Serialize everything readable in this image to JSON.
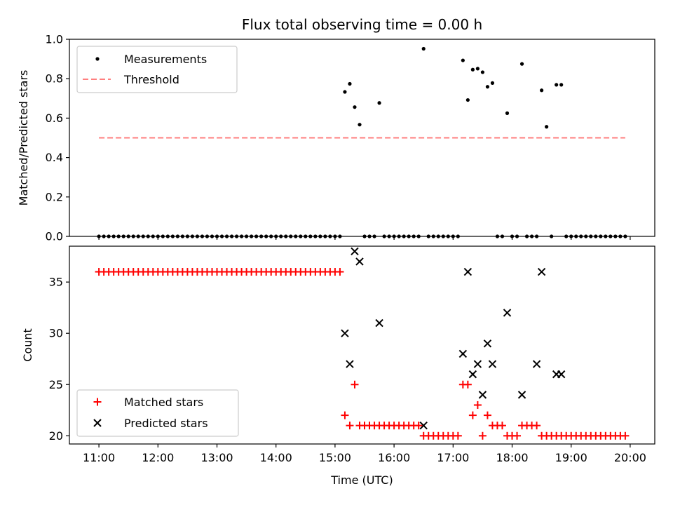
{
  "chart_data": [
    {
      "type": "scatter",
      "title": "Flux total observing time = 0.00 h",
      "xlabel": "",
      "ylabel": "Matched/Predicted stars",
      "ylim": [
        0,
        1.0
      ],
      "yticks": [
        "0.0",
        "0.2",
        "0.4",
        "0.6",
        "0.8",
        "1.0"
      ],
      "xlim": [
        "10:30",
        "20:25"
      ],
      "legend": {
        "placement": "top-left",
        "entries": [
          "Measurements",
          "Threshold"
        ]
      },
      "colors": {
        "measurements": "#000000",
        "threshold": "#ff7f7f"
      },
      "threshold": {
        "name": "Threshold",
        "value": 0.5,
        "x_start": "11:00",
        "x_end": "19:55"
      },
      "series": [
        {
          "name": "Measurements",
          "x": [
            "11:00",
            "11:05",
            "11:10",
            "11:15",
            "11:20",
            "11:25",
            "11:30",
            "11:35",
            "11:40",
            "11:45",
            "11:50",
            "11:55",
            "12:00",
            "12:05",
            "12:10",
            "12:15",
            "12:20",
            "12:25",
            "12:30",
            "12:35",
            "12:40",
            "12:45",
            "12:50",
            "12:55",
            "13:00",
            "13:05",
            "13:10",
            "13:15",
            "13:20",
            "13:25",
            "13:30",
            "13:35",
            "13:40",
            "13:45",
            "13:50",
            "13:55",
            "14:00",
            "14:05",
            "14:10",
            "14:15",
            "14:20",
            "14:25",
            "14:30",
            "14:35",
            "14:40",
            "14:45",
            "14:50",
            "14:55",
            "15:00",
            "15:05",
            "15:10",
            "15:15",
            "15:20",
            "15:25",
            "15:30",
            "15:35",
            "15:40",
            "15:45",
            "15:50",
            "15:55",
            "16:00",
            "16:05",
            "16:10",
            "16:15",
            "16:20",
            "16:25",
            "16:30",
            "16:35",
            "16:40",
            "16:45",
            "16:50",
            "16:55",
            "17:00",
            "17:05",
            "17:10",
            "17:15",
            "17:20",
            "17:25",
            "17:30",
            "17:35",
            "17:40",
            "17:45",
            "17:50",
            "17:55",
            "18:00",
            "18:05",
            "18:10",
            "18:15",
            "18:20",
            "18:25",
            "18:30",
            "18:35",
            "18:40",
            "18:45",
            "18:50",
            "18:55",
            "19:00",
            "19:05",
            "19:10",
            "19:15",
            "19:20",
            "19:25",
            "19:30",
            "19:35",
            "19:40",
            "19:45",
            "19:50",
            "19:55"
          ],
          "values": [
            0,
            0,
            0,
            0,
            0,
            0,
            0,
            0,
            0,
            0,
            0,
            0,
            0,
            0,
            0,
            0,
            0,
            0,
            0,
            0,
            0,
            0,
            0,
            0,
            0,
            0,
            0,
            0,
            0,
            0,
            0,
            0,
            0,
            0,
            0,
            0,
            0,
            0,
            0,
            0,
            0,
            0,
            0,
            0,
            0,
            0,
            0,
            0,
            0,
            0,
            0.733,
            0.774,
            0.656,
            0.567,
            0,
            0,
            0,
            0.677,
            0,
            0,
            0,
            0,
            0,
            0,
            0,
            0,
            0.952,
            0,
            0,
            0,
            0,
            0,
            0,
            0,
            0.893,
            0.692,
            0.846,
            0.851,
            0.833,
            0.759,
            0.778,
            0,
            0,
            0.625,
            0,
            0,
            0.875,
            0,
            0,
            0,
            0.741,
            0.556,
            0,
            0.769,
            0.769,
            0,
            0,
            0,
            0,
            0,
            0,
            0,
            0,
            0,
            0,
            0,
            0,
            0
          ]
        }
      ]
    },
    {
      "type": "scatter",
      "title": "",
      "xlabel": "Time (UTC)",
      "ylabel": "Count",
      "ylim": [
        19.2,
        38.5
      ],
      "yticks": [
        "20",
        "25",
        "30",
        "35"
      ],
      "xlim": [
        "10:30",
        "20:25"
      ],
      "xticks": [
        "11:00",
        "12:00",
        "13:00",
        "14:00",
        "15:00",
        "16:00",
        "17:00",
        "18:00",
        "19:00",
        "20:00"
      ],
      "legend": {
        "placement": "bottom-left",
        "entries": [
          "Matched stars",
          "Predicted stars"
        ]
      },
      "colors": {
        "matched": "#ff0000",
        "predicted": "#000000"
      },
      "series": [
        {
          "name": "Matched stars",
          "x": [
            "11:00",
            "11:05",
            "11:10",
            "11:15",
            "11:20",
            "11:25",
            "11:30",
            "11:35",
            "11:40",
            "11:45",
            "11:50",
            "11:55",
            "12:00",
            "12:05",
            "12:10",
            "12:15",
            "12:20",
            "12:25",
            "12:30",
            "12:35",
            "12:40",
            "12:45",
            "12:50",
            "12:55",
            "13:00",
            "13:05",
            "13:10",
            "13:15",
            "13:20",
            "13:25",
            "13:30",
            "13:35",
            "13:40",
            "13:45",
            "13:50",
            "13:55",
            "14:00",
            "14:05",
            "14:10",
            "14:15",
            "14:20",
            "14:25",
            "14:30",
            "14:35",
            "14:40",
            "14:45",
            "14:50",
            "14:55",
            "15:00",
            "15:05",
            "15:10",
            "15:15",
            "15:20",
            "15:25",
            "15:30",
            "15:35",
            "15:40",
            "15:45",
            "15:50",
            "15:55",
            "16:00",
            "16:05",
            "16:10",
            "16:15",
            "16:20",
            "16:25",
            "16:30",
            "16:35",
            "16:40",
            "16:45",
            "16:50",
            "16:55",
            "17:00",
            "17:05",
            "17:10",
            "17:15",
            "17:20",
            "17:25",
            "17:30",
            "17:35",
            "17:40",
            "17:45",
            "17:50",
            "17:55",
            "18:00",
            "18:05",
            "18:10",
            "18:15",
            "18:20",
            "18:25",
            "18:30",
            "18:35",
            "18:40",
            "18:45",
            "18:50",
            "18:55",
            "19:00",
            "19:05",
            "19:10",
            "19:15",
            "19:20",
            "19:25",
            "19:30",
            "19:35",
            "19:40",
            "19:45",
            "19:50",
            "19:55"
          ],
          "values": [
            36,
            36,
            36,
            36,
            36,
            36,
            36,
            36,
            36,
            36,
            36,
            36,
            36,
            36,
            36,
            36,
            36,
            36,
            36,
            36,
            36,
            36,
            36,
            36,
            36,
            36,
            36,
            36,
            36,
            36,
            36,
            36,
            36,
            36,
            36,
            36,
            36,
            36,
            36,
            36,
            36,
            36,
            36,
            36,
            36,
            36,
            36,
            36,
            36,
            36,
            22,
            21,
            25,
            21,
            21,
            21,
            21,
            21,
            21,
            21,
            21,
            21,
            21,
            21,
            21,
            21,
            20,
            20,
            20,
            20,
            20,
            20,
            20,
            20,
            25,
            25,
            22,
            23,
            20,
            22,
            21,
            21,
            21,
            20,
            20,
            20,
            21,
            21,
            21,
            21,
            20,
            20,
            20,
            20,
            20,
            20,
            20,
            20,
            20,
            20,
            20,
            20,
            20,
            20,
            20,
            20,
            20,
            20
          ]
        },
        {
          "name": "Predicted stars",
          "x": [
            "15:10",
            "15:15",
            "15:20",
            "15:25",
            "15:45",
            "16:30",
            "17:10",
            "17:15",
            "17:20",
            "17:25",
            "17:30",
            "17:35",
            "17:40",
            "17:55",
            "18:10",
            "18:25",
            "18:30",
            "18:45",
            "18:50"
          ],
          "values": [
            30,
            27,
            38,
            37,
            31,
            21,
            28,
            36,
            26,
            27,
            24,
            29,
            27,
            32,
            24,
            27,
            36,
            26,
            26
          ]
        }
      ]
    }
  ]
}
